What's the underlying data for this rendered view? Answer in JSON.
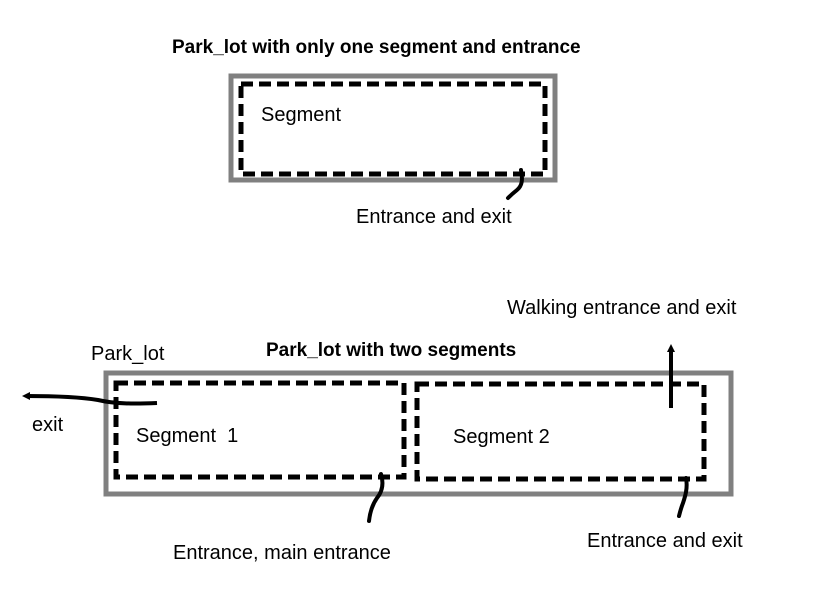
{
  "diagram_one": {
    "title": "Park_lot with only one segment and entrance",
    "segment_label": "Segment",
    "entrance_label": "Entrance and exit"
  },
  "diagram_two": {
    "title": "Park_lot with two segments",
    "park_lot_label": "Park_lot",
    "exit_label": "exit",
    "segment1_label": "Segment  1",
    "segment2_label": "Segment 2",
    "walking_label": "Walking entrance and exit",
    "main_entrance_label": "Entrance, main entrance",
    "entrance2_label": "Entrance and exit"
  },
  "colors": {
    "park_lot_border": "#808080",
    "segment_border": "#000000",
    "text": "#000000"
  }
}
